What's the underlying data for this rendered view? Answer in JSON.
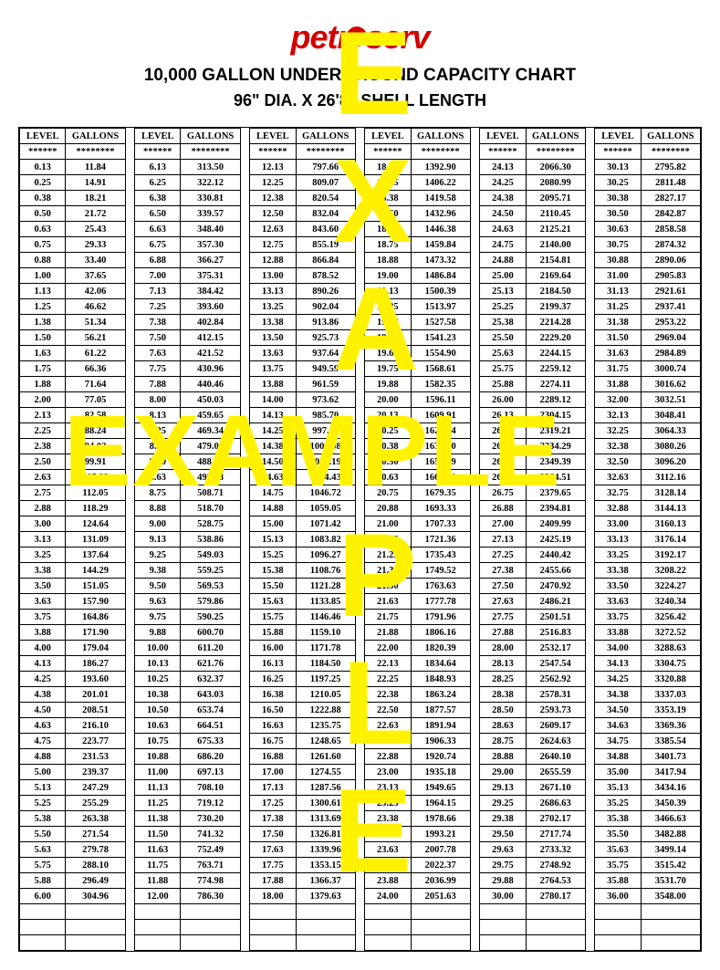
{
  "logo_text": "petroserv",
  "title": "10,000 GALLON UNDERGROUND CAPACITY CHART",
  "subtitle": "96\" DIA. X 26'8\" SHELL LENGTH",
  "headers": {
    "level": "LEVEL",
    "gallons": "GALLONS",
    "stars_level": "******",
    "stars_gallons": "********"
  },
  "watermark_word": "EXAMPLE",
  "watermark_letters": [
    "E",
    "X",
    "A",
    "M",
    "P",
    "L",
    "E"
  ],
  "watermark_color": "#fff200",
  "columns": [
    {
      "pairs": [
        [
          "0.13",
          "11.84"
        ],
        [
          "0.25",
          "14.91"
        ],
        [
          "0.38",
          "18.21"
        ],
        [
          "0.50",
          "21.72"
        ],
        [
          "0.63",
          "25.43"
        ],
        [
          "0.75",
          "29.33"
        ],
        [
          "0.88",
          "33.40"
        ],
        [
          "1.00",
          "37.65"
        ],
        [
          "1.13",
          "42.06"
        ],
        [
          "1.25",
          "46.62"
        ],
        [
          "1.38",
          "51.34"
        ],
        [
          "1.50",
          "56.21"
        ],
        [
          "1.63",
          "61.22"
        ],
        [
          "1.75",
          "66.36"
        ],
        [
          "1.88",
          "71.64"
        ],
        [
          "2.00",
          "77.05"
        ],
        [
          "2.13",
          "82.58"
        ],
        [
          "2.25",
          "88.24"
        ],
        [
          "2.38",
          "94.02"
        ],
        [
          "2.50",
          "99.91"
        ],
        [
          "2.63",
          "105.92"
        ],
        [
          "2.75",
          "112.05"
        ],
        [
          "2.88",
          "118.29"
        ],
        [
          "3.00",
          "124.64"
        ],
        [
          "3.13",
          "131.09"
        ],
        [
          "3.25",
          "137.64"
        ],
        [
          "3.38",
          "144.29"
        ],
        [
          "3.50",
          "151.05"
        ],
        [
          "3.63",
          "157.90"
        ],
        [
          "3.75",
          "164.86"
        ],
        [
          "3.88",
          "171.90"
        ],
        [
          "4.00",
          "179.04"
        ],
        [
          "4.13",
          "186.27"
        ],
        [
          "4.25",
          "193.60"
        ],
        [
          "4.38",
          "201.01"
        ],
        [
          "4.50",
          "208.51"
        ],
        [
          "4.63",
          "216.10"
        ],
        [
          "4.75",
          "223.77"
        ],
        [
          "4.88",
          "231.53"
        ],
        [
          "5.00",
          "239.37"
        ],
        [
          "5.13",
          "247.29"
        ],
        [
          "5.25",
          "255.29"
        ],
        [
          "5.38",
          "263.38"
        ],
        [
          "5.50",
          "271.54"
        ],
        [
          "5.63",
          "279.78"
        ],
        [
          "5.75",
          "288.10"
        ],
        [
          "5.88",
          "296.49"
        ],
        [
          "6.00",
          "304.96"
        ]
      ]
    },
    {
      "pairs": [
        [
          "6.13",
          "313.50"
        ],
        [
          "6.25",
          "322.12"
        ],
        [
          "6.38",
          "330.81"
        ],
        [
          "6.50",
          "339.57"
        ],
        [
          "6.63",
          "348.40"
        ],
        [
          "6.75",
          "357.30"
        ],
        [
          "6.88",
          "366.27"
        ],
        [
          "7.00",
          "375.31"
        ],
        [
          "7.13",
          "384.42"
        ],
        [
          "7.25",
          "393.60"
        ],
        [
          "7.38",
          "402.84"
        ],
        [
          "7.50",
          "412.15"
        ],
        [
          "7.63",
          "421.52"
        ],
        [
          "7.75",
          "430.96"
        ],
        [
          "7.88",
          "440.46"
        ],
        [
          "8.00",
          "450.03"
        ],
        [
          "8.13",
          "459.65"
        ],
        [
          "8.25",
          "469.34"
        ],
        [
          "8.38",
          "479.09"
        ],
        [
          "8.50",
          "488.91"
        ],
        [
          "8.63",
          "498.78"
        ],
        [
          "8.75",
          "508.71"
        ],
        [
          "8.88",
          "518.70"
        ],
        [
          "9.00",
          "528.75"
        ],
        [
          "9.13",
          "538.86"
        ],
        [
          "9.25",
          "549.03"
        ],
        [
          "9.38",
          "559.25"
        ],
        [
          "9.50",
          "569.53"
        ],
        [
          "9.63",
          "579.86"
        ],
        [
          "9.75",
          "590.25"
        ],
        [
          "9.88",
          "600.70"
        ],
        [
          "10.00",
          "611.20"
        ],
        [
          "10.13",
          "621.76"
        ],
        [
          "10.25",
          "632.37"
        ],
        [
          "10.38",
          "643.03"
        ],
        [
          "10.50",
          "653.74"
        ],
        [
          "10.63",
          "664.51"
        ],
        [
          "10.75",
          "675.33"
        ],
        [
          "10.88",
          "686.20"
        ],
        [
          "11.00",
          "697.13"
        ],
        [
          "11.13",
          "708.10"
        ],
        [
          "11.25",
          "719.12"
        ],
        [
          "11.38",
          "730.20"
        ],
        [
          "11.50",
          "741.32"
        ],
        [
          "11.63",
          "752.49"
        ],
        [
          "11.75",
          "763.71"
        ],
        [
          "11.88",
          "774.98"
        ],
        [
          "12.00",
          "786.30"
        ]
      ]
    },
    {
      "pairs": [
        [
          "12.13",
          "797.66"
        ],
        [
          "12.25",
          "809.07"
        ],
        [
          "12.38",
          "820.54"
        ],
        [
          "12.50",
          "832.04"
        ],
        [
          "12.63",
          "843.60"
        ],
        [
          "12.75",
          "855.19"
        ],
        [
          "12.88",
          "866.84"
        ],
        [
          "13.00",
          "878.52"
        ],
        [
          "13.13",
          "890.26"
        ],
        [
          "13.25",
          "902.04"
        ],
        [
          "13.38",
          "913.86"
        ],
        [
          "13.50",
          "925.73"
        ],
        [
          "13.63",
          "937.64"
        ],
        [
          "13.75",
          "949.59"
        ],
        [
          "13.88",
          "961.59"
        ],
        [
          "14.00",
          "973.62"
        ],
        [
          "14.13",
          "985.70"
        ],
        [
          "14.25",
          "997.82"
        ],
        [
          "14.38",
          "1009.98"
        ],
        [
          "14.50",
          "1022.19"
        ],
        [
          "14.63",
          "1034.43"
        ],
        [
          "14.75",
          "1046.72"
        ],
        [
          "14.88",
          "1059.05"
        ],
        [
          "15.00",
          "1071.42"
        ],
        [
          "15.13",
          "1083.82"
        ],
        [
          "15.25",
          "1096.27"
        ],
        [
          "15.38",
          "1108.76"
        ],
        [
          "15.50",
          "1121.28"
        ],
        [
          "15.63",
          "1133.85"
        ],
        [
          "15.75",
          "1146.46"
        ],
        [
          "15.88",
          "1159.10"
        ],
        [
          "16.00",
          "1171.78"
        ],
        [
          "16.13",
          "1184.50"
        ],
        [
          "16.25",
          "1197.25"
        ],
        [
          "16.38",
          "1210.05"
        ],
        [
          "16.50",
          "1222.88"
        ],
        [
          "16.63",
          "1235.75"
        ],
        [
          "16.75",
          "1248.65"
        ],
        [
          "16.88",
          "1261.60"
        ],
        [
          "17.00",
          "1274.55"
        ],
        [
          "17.13",
          "1287.56"
        ],
        [
          "17.25",
          "1300.61"
        ],
        [
          "17.38",
          "1313.69"
        ],
        [
          "17.50",
          "1326.81"
        ],
        [
          "17.63",
          "1339.96"
        ],
        [
          "17.75",
          "1353.15"
        ],
        [
          "17.88",
          "1366.37"
        ],
        [
          "18.00",
          "1379.63"
        ]
      ]
    },
    {
      "pairs": [
        [
          "18.13",
          "1392.90"
        ],
        [
          "18.25",
          "1406.22"
        ],
        [
          "18.38",
          "1419.58"
        ],
        [
          "18.50",
          "1432.96"
        ],
        [
          "18.63",
          "1446.38"
        ],
        [
          "18.75",
          "1459.84"
        ],
        [
          "18.88",
          "1473.32"
        ],
        [
          "19.00",
          "1486.84"
        ],
        [
          "19.13",
          "1500.39"
        ],
        [
          "19.25",
          "1513.97"
        ],
        [
          "19.38",
          "1527.58"
        ],
        [
          "19.50",
          "1541.23"
        ],
        [
          "19.63",
          "1554.90"
        ],
        [
          "19.75",
          "1568.61"
        ],
        [
          "19.88",
          "1582.35"
        ],
        [
          "20.00",
          "1596.11"
        ],
        [
          "20.13",
          "1609.91"
        ],
        [
          "20.25",
          "1623.74"
        ],
        [
          "20.38",
          "1637.60"
        ],
        [
          "20.50",
          "1651.49"
        ],
        [
          "20.63",
          "1665.41"
        ],
        [
          "20.75",
          "1679.35"
        ],
        [
          "20.88",
          "1693.33"
        ],
        [
          "21.00",
          "1707.33"
        ],
        [
          "21.13",
          "1721.36"
        ],
        [
          "21.25",
          "1735.43"
        ],
        [
          "21.38",
          "1749.52"
        ],
        [
          "21.50",
          "1763.63"
        ],
        [
          "21.63",
          "1777.78"
        ],
        [
          "21.75",
          "1791.96"
        ],
        [
          "21.88",
          "1806.16"
        ],
        [
          "22.00",
          "1820.39"
        ],
        [
          "22.13",
          "1834.64"
        ],
        [
          "22.25",
          "1848.93"
        ],
        [
          "22.38",
          "1863.24"
        ],
        [
          "22.50",
          "1877.57"
        ],
        [
          "22.63",
          "1891.94"
        ],
        [
          "22.75",
          "1906.33"
        ],
        [
          "22.88",
          "1920.74"
        ],
        [
          "23.00",
          "1935.18"
        ],
        [
          "23.13",
          "1949.65"
        ],
        [
          "23.25",
          "1964.15"
        ],
        [
          "23.38",
          "1978.66"
        ],
        [
          "23.50",
          "1993.21"
        ],
        [
          "23.63",
          "2007.78"
        ],
        [
          "23.75",
          "2022.37"
        ],
        [
          "23.88",
          "2036.99"
        ],
        [
          "24.00",
          "2051.63"
        ]
      ]
    },
    {
      "pairs": [
        [
          "24.13",
          "2066.30"
        ],
        [
          "24.25",
          "2080.99"
        ],
        [
          "24.38",
          "2095.71"
        ],
        [
          "24.50",
          "2110.45"
        ],
        [
          "24.63",
          "2125.21"
        ],
        [
          "24.75",
          "2140.00"
        ],
        [
          "24.88",
          "2154.81"
        ],
        [
          "25.00",
          "2169.64"
        ],
        [
          "25.13",
          "2184.50"
        ],
        [
          "25.25",
          "2199.37"
        ],
        [
          "25.38",
          "2214.28"
        ],
        [
          "25.50",
          "2229.20"
        ],
        [
          "25.63",
          "2244.15"
        ],
        [
          "25.75",
          "2259.12"
        ],
        [
          "25.88",
          "2274.11"
        ],
        [
          "26.00",
          "2289.12"
        ],
        [
          "26.13",
          "2304.15"
        ],
        [
          "26.25",
          "2319.21"
        ],
        [
          "26.38",
          "2334.29"
        ],
        [
          "26.50",
          "2349.39"
        ],
        [
          "26.63",
          "2364.51"
        ],
        [
          "26.75",
          "2379.65"
        ],
        [
          "26.88",
          "2394.81"
        ],
        [
          "27.00",
          "2409.99"
        ],
        [
          "27.13",
          "2425.19"
        ],
        [
          "27.25",
          "2440.42"
        ],
        [
          "27.38",
          "2455.66"
        ],
        [
          "27.50",
          "2470.92"
        ],
        [
          "27.63",
          "2486.21"
        ],
        [
          "27.75",
          "2501.51"
        ],
        [
          "27.88",
          "2516.83"
        ],
        [
          "28.00",
          "2532.17"
        ],
        [
          "28.13",
          "2547.54"
        ],
        [
          "28.25",
          "2562.92"
        ],
        [
          "28.38",
          "2578.31"
        ],
        [
          "28.50",
          "2593.73"
        ],
        [
          "28.63",
          "2609.17"
        ],
        [
          "28.75",
          "2624.63"
        ],
        [
          "28.88",
          "2640.10"
        ],
        [
          "29.00",
          "2655.59"
        ],
        [
          "29.13",
          "2671.10"
        ],
        [
          "29.25",
          "2686.63"
        ],
        [
          "29.38",
          "2702.17"
        ],
        [
          "29.50",
          "2717.74"
        ],
        [
          "29.63",
          "2733.32"
        ],
        [
          "29.75",
          "2748.92"
        ],
        [
          "29.88",
          "2764.53"
        ],
        [
          "30.00",
          "2780.17"
        ]
      ]
    },
    {
      "pairs": [
        [
          "30.13",
          "2795.82"
        ],
        [
          "30.25",
          "2811.48"
        ],
        [
          "30.38",
          "2827.17"
        ],
        [
          "30.50",
          "2842.87"
        ],
        [
          "30.63",
          "2858.58"
        ],
        [
          "30.75",
          "2874.32"
        ],
        [
          "30.88",
          "2890.06"
        ],
        [
          "31.00",
          "2905.83"
        ],
        [
          "31.13",
          "2921.61"
        ],
        [
          "31.25",
          "2937.41"
        ],
        [
          "31.38",
          "2953.22"
        ],
        [
          "31.50",
          "2969.04"
        ],
        [
          "31.63",
          "2984.89"
        ],
        [
          "31.75",
          "3000.74"
        ],
        [
          "31.88",
          "3016.62"
        ],
        [
          "32.00",
          "3032.51"
        ],
        [
          "32.13",
          "3048.41"
        ],
        [
          "32.25",
          "3064.33"
        ],
        [
          "32.38",
          "3080.26"
        ],
        [
          "32.50",
          "3096.20"
        ],
        [
          "32.63",
          "3112.16"
        ],
        [
          "32.75",
          "3128.14"
        ],
        [
          "32.88",
          "3144.13"
        ],
        [
          "33.00",
          "3160.13"
        ],
        [
          "33.13",
          "3176.14"
        ],
        [
          "33.25",
          "3192.17"
        ],
        [
          "33.38",
          "3208.22"
        ],
        [
          "33.50",
          "3224.27"
        ],
        [
          "33.63",
          "3240.34"
        ],
        [
          "33.75",
          "3256.42"
        ],
        [
          "33.88",
          "3272.52"
        ],
        [
          "34.00",
          "3288.63"
        ],
        [
          "34.13",
          "3304.75"
        ],
        [
          "34.25",
          "3320.88"
        ],
        [
          "34.38",
          "3337.03"
        ],
        [
          "34.50",
          "3353.19"
        ],
        [
          "34.63",
          "3369.36"
        ],
        [
          "34.75",
          "3385.54"
        ],
        [
          "34.88",
          "3401.73"
        ],
        [
          "35.00",
          "3417.94"
        ],
        [
          "35.13",
          "3434.16"
        ],
        [
          "35.25",
          "3450.39"
        ],
        [
          "35.38",
          "3466.63"
        ],
        [
          "35.50",
          "3482.88"
        ],
        [
          "35.63",
          "3499.14"
        ],
        [
          "35.75",
          "3515.42"
        ],
        [
          "35.88",
          "3531.70"
        ],
        [
          "36.00",
          "3548.00"
        ]
      ]
    }
  ],
  "blank_rows": 3
}
